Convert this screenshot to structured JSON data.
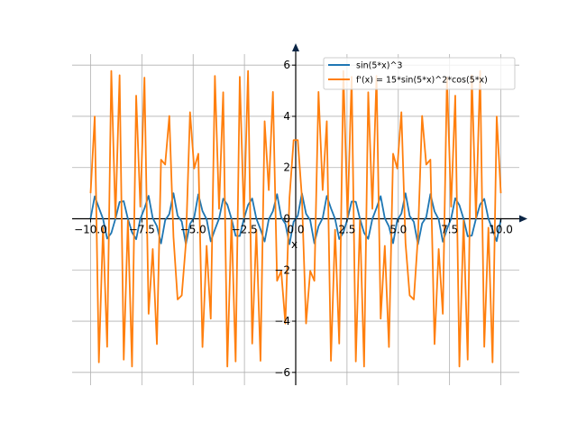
{
  "chart_data": {
    "type": "line",
    "title": "",
    "xlabel": "x",
    "ylabel": "",
    "xlim": [
      -10.9,
      10.9
    ],
    "ylim": [
      -6.5,
      6.5
    ],
    "grid": true,
    "legend_placement": "top-right",
    "x_ticks": [
      -10.0,
      -7.5,
      -5.0,
      -2.5,
      0.0,
      2.5,
      5.0,
      7.5,
      10.0
    ],
    "x_tick_labels": [
      "−10.0",
      "−7.5",
      "−5.0",
      "−2.5",
      "0.0",
      "2.5",
      "5.0",
      "7.5",
      "10.0"
    ],
    "y_ticks": [
      -6,
      -4,
      -2,
      0,
      2,
      4,
      6
    ],
    "y_tick_labels": [
      "−6",
      "−4",
      "−2",
      "0",
      "2",
      "4",
      "6"
    ],
    "x_range": [
      -10,
      10
    ],
    "sample_count": 100,
    "series": [
      {
        "name": "sin(5*x)^3",
        "expression": "sin(5*x)^3",
        "color": "#1f77b4"
      },
      {
        "name": "f'(x) = 15*sin(5*x)^2*cos(5*x)",
        "expression": "15*sin(5*x)^2*cos(5*x)",
        "color": "#ff7f0e"
      }
    ]
  }
}
